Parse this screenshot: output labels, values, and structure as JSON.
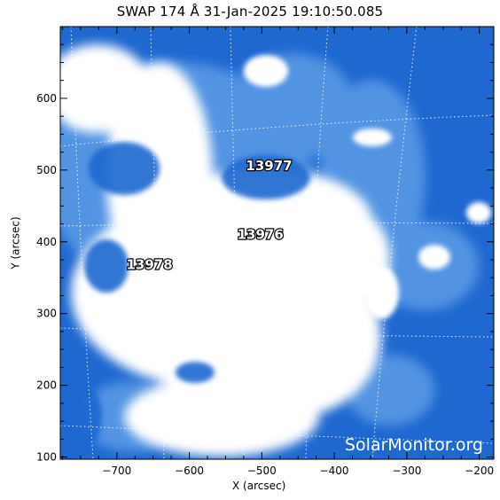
{
  "title": "SWAP 174 Å 31-Jan-2025 19:10:50.085",
  "x_axis_label": "X (arcsec)",
  "y_axis_label": "Y (arcsec)",
  "x_ticks": [
    "−700",
    "−600",
    "−500",
    "−400",
    "−300",
    "−200"
  ],
  "y_ticks": [
    "100",
    "200",
    "300",
    "400",
    "500",
    "600"
  ],
  "x_range": [
    -778,
    -180
  ],
  "y_range": [
    97,
    700
  ],
  "active_regions": [
    {
      "label": "13977",
      "x": -490,
      "y": 500
    },
    {
      "label": "13976",
      "x": -502,
      "y": 404
    },
    {
      "label": "13978",
      "x": -655,
      "y": 362
    }
  ],
  "watermark": "SolarMonitor.org",
  "colors": {
    "background": "#1f68d0",
    "bright": "#ffffff",
    "mid": "#5b9be6"
  }
}
